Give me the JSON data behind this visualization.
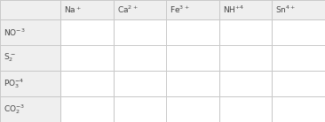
{
  "col_labels": [
    "Na$^+$",
    "Ca$^{2+}$",
    "Fe$^{3+}$",
    "NH$^{+4}$",
    "Sn$^{4+}$"
  ],
  "row_labels": [
    "NO$^{-3}$",
    "S$_2^-$",
    "PO$_3^{-4}$",
    "CO$_2^{-3}$"
  ],
  "background_color": "#f0f0f0",
  "cell_background": "#ffffff",
  "header_background": "#efefef",
  "grid_color": "#c8c8c8",
  "text_color": "#444444",
  "font_size": 6.5,
  "fig_width": 3.66,
  "fig_height": 1.38,
  "dpi": 100
}
